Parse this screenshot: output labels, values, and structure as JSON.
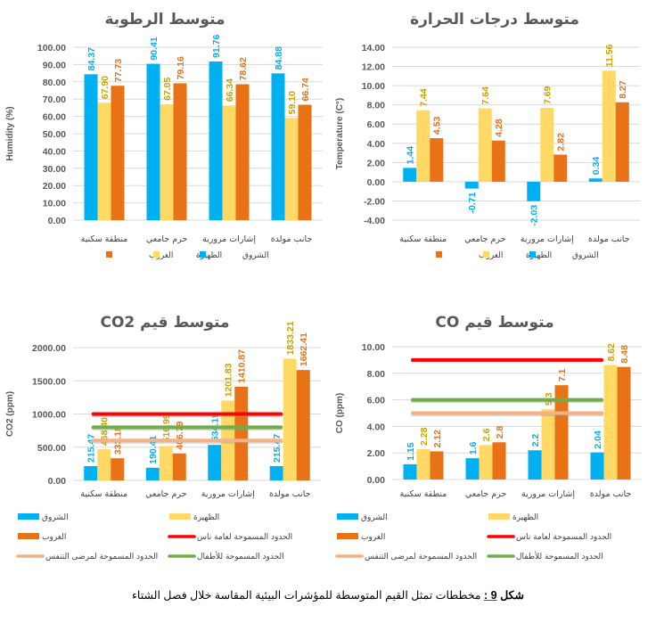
{
  "colors": {
    "sunrise": "#00b0f0",
    "noon": "#ffd966",
    "sunset": "#e97116",
    "limit_public": "#ff0000",
    "limit_children": "#70ad47",
    "limit_respiratory": "#f4b183",
    "noon_label": "#c9a100",
    "sunset_label": "#e97116",
    "sunrise_label": "#00b0f0"
  },
  "legend": {
    "sunrise": "الشروق",
    "noon": "الظهيرة",
    "sunset": "الغروب",
    "limit_public": "الحدود المسموحة لعامة ناس",
    "limit_children": "الحدود المسموحة للأطفال",
    "limit_respiratory": "الحدود المسموحة لمرضى التنفس"
  },
  "caption": {
    "label": "شكل",
    "number": "9 :",
    "text": "مخططات تمثل القيم المتوسطة للمؤشرات البيئية المقاسة خلال فصل الشتاء"
  },
  "chart_data": [
    {
      "id": "humidity",
      "type": "bar",
      "title": "متوسط الرطوبة",
      "ylabel": "Humidity (%)",
      "xlabel": "",
      "ylim": [
        0,
        100
      ],
      "yticks": [
        0,
        10,
        20,
        30,
        40,
        50,
        60,
        70,
        80,
        90,
        100
      ],
      "tick_labels": [
        "0.00",
        "10.00",
        "20.00",
        "30.00",
        "40.00",
        "50.00",
        "60.00",
        "70.00",
        "80.00",
        "90.00",
        "100.00"
      ],
      "categories": [
        "منطقة سكنية",
        "حرم جامعي",
        "إشارات مرورية",
        "جانب مولدة"
      ],
      "series": [
        {
          "name": "الشروق",
          "key": "sunrise",
          "values": [
            84.37,
            90.41,
            91.76,
            84.88
          ],
          "labels": [
            "84.37",
            "90.41",
            "91.76",
            "84.88"
          ]
        },
        {
          "name": "الظهيرة",
          "key": "noon",
          "values": [
            67.9,
            67.05,
            66.34,
            59.1
          ],
          "labels": [
            "67.90",
            "67.05",
            "66.34",
            "59.10"
          ]
        },
        {
          "name": "الغروب",
          "key": "sunset",
          "values": [
            77.73,
            79.16,
            78.62,
            66.74
          ],
          "labels": [
            "77.73",
            "79.16",
            "78.62",
            "66.74"
          ]
        }
      ],
      "limits": [],
      "legend_position": "bottom",
      "grid": true
    },
    {
      "id": "temperature",
      "type": "bar",
      "title": "متوسط درجات الحرارة",
      "ylabel": "Temperature (C°)",
      "xlabel": "",
      "ylim": [
        -4,
        14
      ],
      "yticks": [
        -4,
        -2,
        0,
        2,
        4,
        6,
        8,
        10,
        12,
        14
      ],
      "tick_labels": [
        "-4.00",
        "-2.00",
        "0.00",
        "2.00",
        "4.00",
        "6.00",
        "8.00",
        "10.00",
        "12.00",
        "14.00"
      ],
      "categories": [
        "منطقة سكنية",
        "حرم جامعي",
        "إشارات مرورية",
        "جانب مولدة"
      ],
      "series": [
        {
          "name": "الشروق",
          "key": "sunrise",
          "values": [
            1.44,
            -0.71,
            -2.03,
            0.34
          ],
          "labels": [
            "1.44",
            "-0.71",
            "-2.03",
            "0.34"
          ]
        },
        {
          "name": "الظهيرة",
          "key": "noon",
          "values": [
            7.44,
            7.64,
            7.69,
            11.56
          ],
          "labels": [
            "7.44",
            "7.64",
            "7.69",
            "11.56"
          ]
        },
        {
          "name": "الغروب",
          "key": "sunset",
          "values": [
            4.53,
            4.28,
            2.82,
            8.27
          ],
          "labels": [
            "4.53",
            "4.28",
            "2.82",
            "8.27"
          ]
        }
      ],
      "limits": [],
      "legend_position": "bottom",
      "grid": true
    },
    {
      "id": "co2",
      "type": "bar",
      "title": "متوسط قيم CO2",
      "ylabel": "CO2 (ppm)",
      "xlabel": "",
      "ylim": [
        0,
        2000
      ],
      "yticks": [
        0,
        500,
        1000,
        1500,
        2000
      ],
      "tick_labels": [
        "0.00",
        "500.00",
        "1000.00",
        "1500.00",
        "2000.00"
      ],
      "categories": [
        "منطقة سكنية",
        "حرم جامعي",
        "إشارات مرورية",
        "جانب مولدة"
      ],
      "series": [
        {
          "name": "الشروق",
          "key": "sunrise",
          "values": [
            215.47,
            190.41,
            534.19,
            215.47
          ],
          "labels": [
            "215.47",
            "190.41",
            "534.19",
            "215.47"
          ]
        },
        {
          "name": "الظهيرة",
          "key": "noon",
          "values": [
            468.4,
            516.99,
            1201.83,
            1833.21
          ],
          "labels": [
            "468.40",
            "516.99",
            "1201.83",
            "1833.21"
          ]
        },
        {
          "name": "الغروب",
          "key": "sunset",
          "values": [
            333.18,
            406.79,
            1410.87,
            1662.41
          ],
          "labels": [
            "333.18",
            "406.79",
            "1410.87",
            "1662.41"
          ]
        }
      ],
      "limits": [
        {
          "name": "الحدود المسموحة لعامة ناس",
          "key": "limit_public",
          "value": 1000
        },
        {
          "name": "الحدود المسموحة للأطفال",
          "key": "limit_children",
          "value": 800
        },
        {
          "name": "الحدود المسموحة لمرضى التنفس",
          "key": "limit_respiratory",
          "value": 600
        }
      ],
      "legend_position": "bottom",
      "grid": true
    },
    {
      "id": "co",
      "type": "bar",
      "title": "متوسط قيم CO",
      "ylabel": "CO (ppm)",
      "xlabel": "",
      "ylim": [
        0,
        10
      ],
      "yticks": [
        0,
        2,
        4,
        6,
        8,
        10
      ],
      "tick_labels": [
        "0.00",
        "2.00",
        "4.00",
        "6.00",
        "8.00",
        "10.00"
      ],
      "categories": [
        "منطقة سكنية",
        "حرم جامعي",
        "إشارات مرورية",
        "جانب مولدة"
      ],
      "series": [
        {
          "name": "الشروق",
          "key": "sunrise",
          "values": [
            1.15,
            1.6,
            2.2,
            2.04
          ],
          "labels": [
            "1.15",
            "1.6",
            "2.2",
            "2.04"
          ]
        },
        {
          "name": "الظهيرة",
          "key": "noon",
          "values": [
            2.28,
            2.6,
            5.3,
            8.62
          ],
          "labels": [
            "2.28",
            "2.6",
            "5.3",
            "8.62"
          ]
        },
        {
          "name": "الغروب",
          "key": "sunset",
          "values": [
            2.12,
            2.8,
            7.1,
            8.48
          ],
          "labels": [
            "2.12",
            "2.8",
            "7.1",
            "8.48"
          ]
        }
      ],
      "limits": [
        {
          "name": "الحدود المسموحة لعامة ناس",
          "key": "limit_public",
          "value": 9
        },
        {
          "name": "الحدود المسموحة للأطفال",
          "key": "limit_children",
          "value": 6
        },
        {
          "name": "الحدود المسموحة لمرضى التنفس",
          "key": "limit_respiratory",
          "value": 5
        }
      ],
      "legend_position": "bottom",
      "grid": true
    }
  ]
}
